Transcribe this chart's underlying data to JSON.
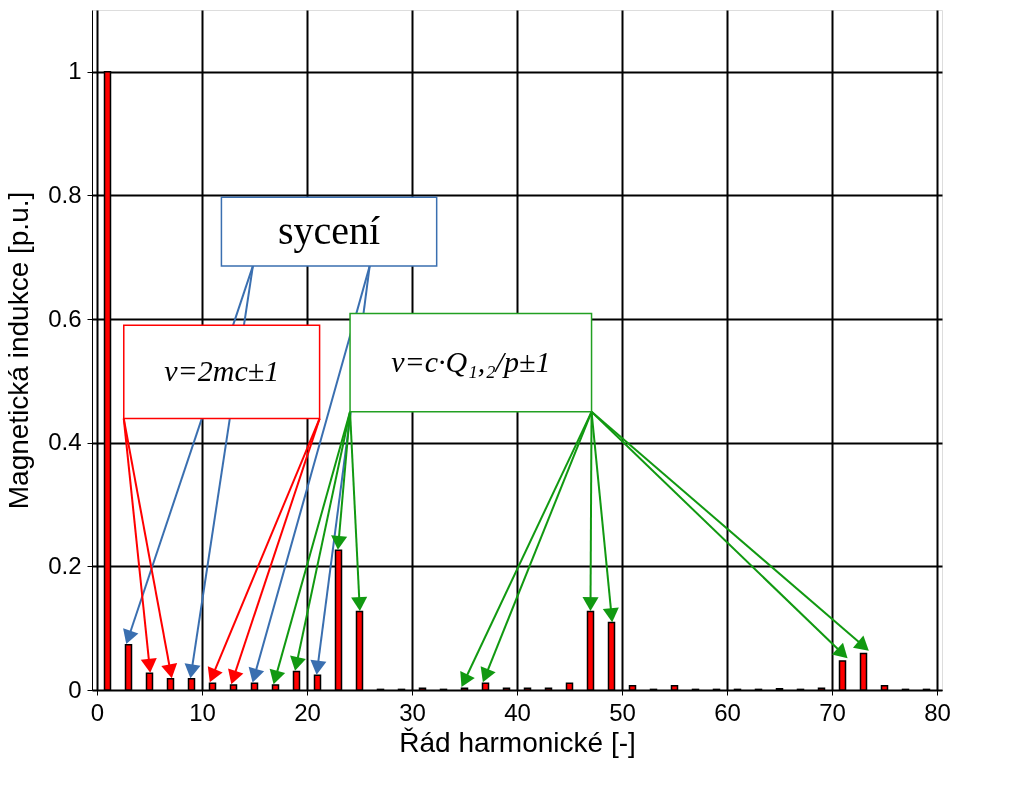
{
  "chart_data": {
    "type": "bar",
    "xlabel": "Řád harmonické [-]",
    "ylabel": "Magnetická indukce [p.u.]",
    "x": [
      1,
      3,
      5,
      7,
      9,
      11,
      13,
      15,
      17,
      19,
      21,
      23,
      25,
      27,
      29,
      31,
      33,
      35,
      37,
      39,
      41,
      43,
      45,
      47,
      49,
      51,
      53,
      55,
      57,
      59,
      61,
      63,
      65,
      67,
      69,
      71,
      73,
      75,
      77,
      79
    ],
    "values": [
      1,
      0.073,
      0.027,
      0.018,
      0.018,
      0.011,
      0.008,
      0.011,
      0.008,
      0.03,
      0.024,
      0.226,
      0.127,
      0.001,
      0.001,
      0.003,
      0.001,
      0.003,
      0.011,
      0.003,
      0.003,
      0.003,
      0.011,
      0.127,
      0.109,
      0.007,
      0.001,
      0.007,
      0.001,
      0.001,
      0.001,
      0.001,
      0.002,
      0.001,
      0.003,
      0.047,
      0.059,
      0.007,
      0.001,
      0.001
    ],
    "color": "#ff0000",
    "xlim": [
      0,
      80
    ],
    "xticks": [
      0,
      10,
      20,
      30,
      40,
      50,
      60,
      70,
      80
    ],
    "ylim": [
      0,
      1.1
    ],
    "yticks": [
      0,
      0.2,
      0.4,
      0.6,
      0.8,
      1
    ],
    "grid": true,
    "annotations": [
      "sycení",
      "ν=2mc±1",
      "ν=c·Q₁,₂/p±1"
    ]
  }
}
